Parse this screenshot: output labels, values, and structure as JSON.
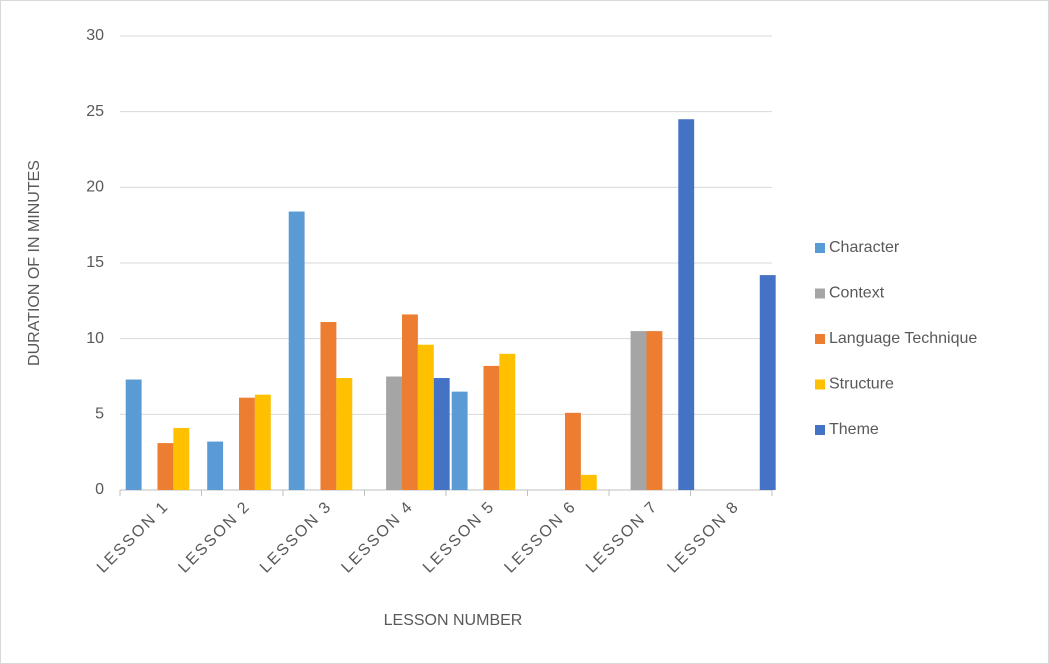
{
  "chart_data": {
    "type": "bar",
    "x_label": "LESSON NUMBER",
    "y_label": "DURATION OF IN MINUTES",
    "categories": [
      "LESSON 1",
      "LESSON 2",
      "LESSON 3",
      "LESSON 4",
      "LESSON 5",
      "LESSON 6",
      "LESSON 7",
      "LESSON 8"
    ],
    "series": [
      {
        "name": "Character",
        "color": "#5b9bd5",
        "values": [
          7.3,
          3.2,
          18.4,
          0,
          6.5,
          0,
          0,
          0
        ]
      },
      {
        "name": "Context",
        "color": "#a5a5a5",
        "values": [
          0,
          0,
          0,
          7.5,
          0,
          0,
          10.5,
          0
        ]
      },
      {
        "name": "Language Technique",
        "color": "#ed7d31",
        "values": [
          3.1,
          6.1,
          11.1,
          11.6,
          8.2,
          5.1,
          10.5,
          0
        ]
      },
      {
        "name": "Structure",
        "color": "#ffc000",
        "values": [
          4.1,
          6.3,
          7.4,
          9.6,
          9.0,
          1.0,
          0,
          0
        ]
      },
      {
        "name": "Theme",
        "color": "#4472c4",
        "values": [
          0,
          0,
          0,
          7.4,
          0,
          0,
          24.5,
          14.2
        ]
      }
    ],
    "ylim": [
      0,
      30
    ],
    "yticks": [
      0,
      5,
      10,
      15,
      20,
      25,
      30
    ],
    "grid": true,
    "legend": "right"
  }
}
